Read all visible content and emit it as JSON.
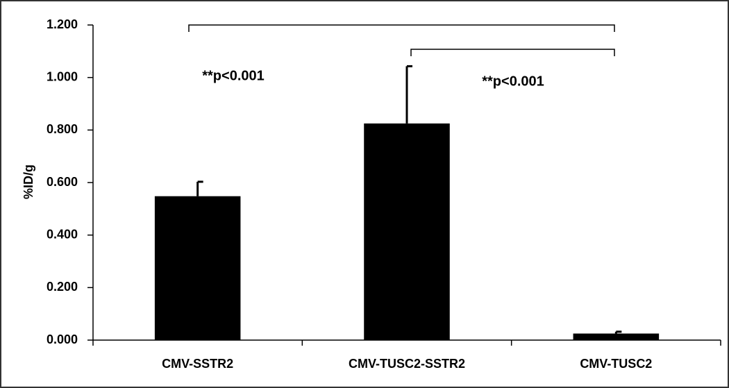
{
  "chart_data": {
    "type": "bar",
    "y_label": "%ID/g",
    "categories": [
      "CMV-SSTR2",
      "CMV-TUSC2-SSTR2",
      "CMV-TUSC2"
    ],
    "values": [
      0.548,
      0.825,
      0.025
    ],
    "errors": [
      0.055,
      0.218,
      0.007
    ],
    "color": "#000000",
    "ylim": [
      0,
      1.2
    ],
    "yticks": [
      {
        "value": 0,
        "label": "0.000"
      },
      {
        "value": 0.2,
        "label": "0.200"
      },
      {
        "value": 0.4,
        "label": "0.400"
      },
      {
        "value": 0.6,
        "label": "0.600"
      },
      {
        "value": 0.8,
        "label": "0.800"
      },
      {
        "value": 1.0,
        "label": "1.000"
      },
      {
        "value": 1.2,
        "label": "1.200"
      }
    ],
    "annotations": [
      "**p<0.001",
      "**p<0.001"
    ]
  }
}
